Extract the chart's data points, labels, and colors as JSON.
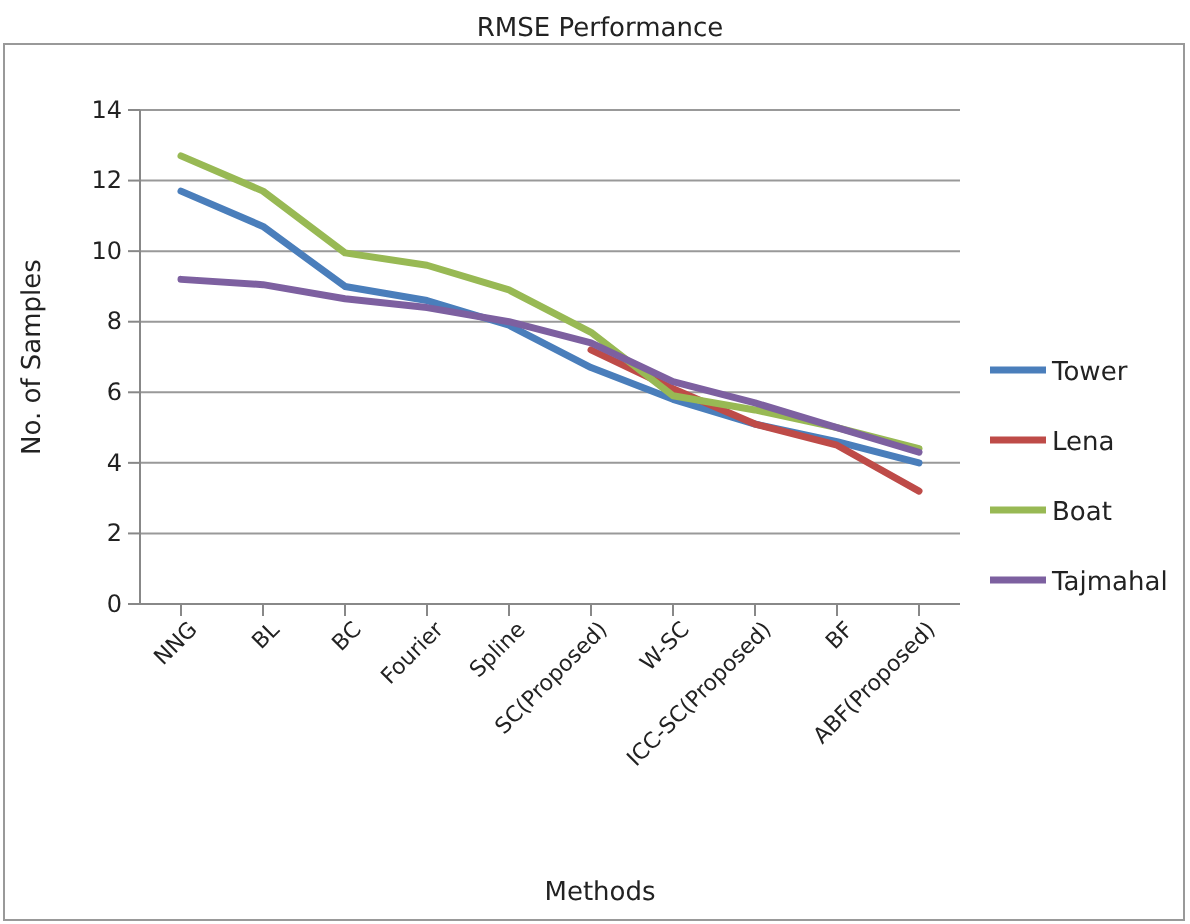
{
  "chart_data": {
    "type": "line",
    "title": "RMSE Performance",
    "xlabel": "Methods",
    "ylabel": "No. of Samples",
    "categories": [
      "NNG",
      "BL",
      "BC",
      "Fourier",
      "Spline",
      "SC(Proposed)",
      "W-SC",
      "ICC-SC(Proposed)",
      "BF",
      "ABF(Proposed)"
    ],
    "series": [
      {
        "name": "Tower",
        "color": "#4a7ebb",
        "values": [
          11.7,
          10.7,
          9.0,
          8.6,
          7.9,
          6.7,
          5.8,
          5.1,
          4.6,
          4.0
        ]
      },
      {
        "name": "Lena",
        "color": "#be4b48",
        "values": [
          null,
          null,
          null,
          null,
          null,
          7.2,
          6.1,
          5.1,
          4.5,
          3.2
        ]
      },
      {
        "name": "Boat",
        "color": "#98b954",
        "values": [
          12.7,
          11.7,
          9.95,
          9.6,
          8.9,
          7.7,
          5.9,
          5.5,
          5.0,
          4.4
        ]
      },
      {
        "name": "Tajmahal",
        "color": "#7d60a0",
        "values": [
          9.2,
          9.05,
          8.65,
          8.4,
          8.0,
          7.4,
          6.3,
          5.7,
          5.0,
          4.3
        ]
      }
    ],
    "ylim": [
      0,
      14
    ],
    "yticks": [
      0,
      2,
      4,
      6,
      8,
      10,
      12,
      14
    ],
    "grid": "y",
    "legend": "right",
    "marker": "none",
    "line_style": "solid"
  }
}
